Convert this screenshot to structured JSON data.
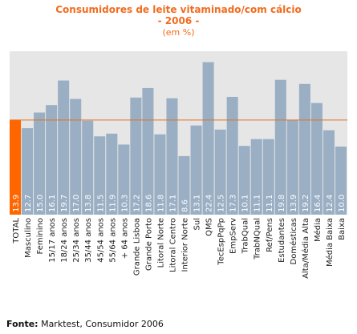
{
  "header": {
    "title": "Consumidores de leite vitaminado/com cálcio",
    "subtitle": "- 2006 -",
    "unit": "(em %)"
  },
  "source": {
    "label": "Fonte:",
    "text": "Marktest, Consumidor 2006"
  },
  "colors": {
    "plot_background": "#e6e6e6",
    "bar": "#9aafc4",
    "highlight_bar": "#ff6600",
    "reference_line": "#e07020",
    "title": "#f26b1d"
  },
  "chart_data": {
    "type": "bar",
    "title": "Consumidores de leite vitaminado/com cálcio",
    "categories": [
      "TOTAL",
      "Masculino",
      "Feminino",
      "15/17 anos",
      "18/24 anos",
      "25/34 anos",
      "35/44 anos",
      "45/54 anos",
      "55/64 anos",
      "+ 64 anos",
      "Grande Lisboa",
      "Grande Porto",
      "Litoral Norte",
      "Litoral Centro",
      "Interior Norte",
      "Sul",
      "QMS",
      "TecEspPqPp",
      "EmpServ",
      "TrabQual",
      "TrabNQual",
      "Ref/Pens",
      "Estudantes",
      "Domésticas",
      "Alta/Média Alta",
      "Média",
      "Média Baixa",
      "Baixa"
    ],
    "values": [
      13.9,
      12.7,
      15.0,
      16.1,
      19.7,
      17.0,
      13.8,
      11.5,
      11.9,
      10.3,
      17.2,
      18.6,
      11.8,
      17.1,
      8.6,
      13.1,
      22.4,
      12.5,
      17.3,
      10.1,
      11.1,
      11.1,
      19.8,
      13.9,
      19.2,
      16.4,
      12.4,
      10.0
    ],
    "value_labels": [
      "13.9",
      "12.7",
      "15.0",
      "16.1",
      "19.7",
      "17.0",
      "13.8",
      "11.5",
      "11.9",
      "10.3",
      "17.2",
      "18.6",
      "11.8",
      "17.1",
      "8.6",
      "13.1",
      "22.4",
      "12.5",
      "17.3",
      "10.1",
      "11.1",
      "11.1",
      "19.8",
      "13.9",
      "19.2",
      "16.4",
      "12.4",
      "10.0"
    ],
    "highlight_index": 0,
    "reference_value": 13.9,
    "ylim": [
      0,
      24
    ],
    "grid": false,
    "legend": "none"
  }
}
